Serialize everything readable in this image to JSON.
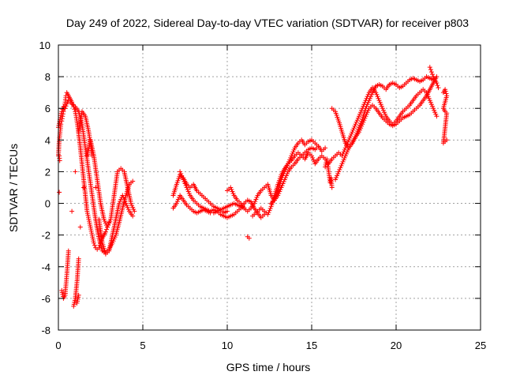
{
  "chart_data": {
    "type": "scatter",
    "title": "Day 249 of 2022, Sidereal Day-to-day VTEC variation (SDTVAR) for receiver p803",
    "xlabel": "GPS time / hours",
    "ylabel": "SDTVAR / TECUs",
    "xlim": [
      0,
      25
    ],
    "ylim": [
      -8,
      10
    ],
    "xticks": [
      0,
      5,
      10,
      15,
      20,
      25
    ],
    "yticks": [
      -8,
      -6,
      -4,
      -2,
      0,
      2,
      4,
      6,
      8,
      10
    ],
    "grid": true,
    "marker": "+",
    "colors": {
      "series": "#ff0000",
      "grid": "#a0a0a0",
      "axis": "#000000"
    },
    "series": [
      {
        "name": "arc-1",
        "x": [
          0.0,
          0.1,
          0.2,
          0.3,
          0.4,
          0.5,
          0.6,
          0.8,
          1.0,
          1.2,
          1.4,
          1.6,
          1.8,
          2.0,
          2.2,
          2.4,
          2.6,
          2.8,
          3.0,
          3.2,
          3.4,
          3.6,
          3.8,
          4.0,
          4.2,
          4.4
        ],
        "y": [
          4.8,
          5.3,
          5.8,
          6.1,
          6.0,
          6.3,
          6.5,
          6.3,
          6.1,
          5.8,
          5.0,
          3.5,
          2.0,
          0.5,
          -1.0,
          -2.2,
          -3.0,
          -3.1,
          -2.9,
          -2.5,
          -2.0,
          -1.2,
          -0.3,
          0.5,
          1.2,
          1.4
        ]
      },
      {
        "name": "arc-2",
        "x": [
          0.2,
          0.3,
          0.4,
          0.5,
          0.6,
          0.8,
          1.0,
          1.2,
          1.4,
          1.6,
          1.8,
          2.0,
          2.2,
          2.4,
          2.6,
          2.8,
          3.0,
          3.2,
          3.4,
          3.6,
          3.8,
          4.0,
          4.2,
          4.4
        ],
        "y": [
          -5.5,
          -6.0,
          -5.8,
          -4.5,
          -3.0,
          -0.5,
          2.0,
          4.5,
          5.8,
          5.5,
          4.5,
          3.0,
          1.0,
          -1.0,
          -2.5,
          -3.2,
          -3.0,
          -2.0,
          -1.0,
          0.0,
          0.5,
          0.0,
          -0.5,
          -0.8
        ]
      },
      {
        "name": "arc-3",
        "x": [
          0.9,
          1.0,
          1.1,
          1.2,
          1.3,
          1.5,
          1.7,
          1.9,
          2.1,
          2.3,
          2.5,
          2.7,
          2.9,
          3.1,
          3.3,
          3.5,
          3.7,
          3.9,
          4.1,
          4.3,
          4.5
        ],
        "y": [
          -6.5,
          -6.0,
          -5.0,
          -3.5,
          -1.5,
          1.0,
          3.0,
          4.0,
          3.0,
          1.5,
          0.0,
          -1.0,
          -1.5,
          -1.0,
          0.5,
          2.0,
          2.2,
          2.0,
          1.0,
          0.0,
          -0.5
        ]
      },
      {
        "name": "arc-4",
        "x": [
          0.0,
          0.05,
          0.1,
          0.15,
          0.2,
          0.25,
          0.3,
          0.35,
          0.4,
          0.45,
          0.5,
          0.55,
          0.6,
          0.7,
          0.8,
          0.9,
          1.0,
          1.1,
          1.2,
          1.3,
          1.4,
          1.5,
          1.6,
          1.7,
          1.8,
          1.9,
          2.0,
          2.1,
          2.2,
          2.3,
          2.4,
          2.5,
          2.6,
          2.7,
          2.8,
          2.9,
          3.0
        ],
        "y": [
          3.0,
          4.0,
          4.5,
          5.0,
          5.2,
          5.5,
          5.8,
          6.0,
          6.4,
          6.8,
          7.0,
          6.9,
          6.8,
          6.6,
          6.4,
          6.1,
          5.8,
          5.2,
          4.4,
          3.5,
          2.5,
          1.5,
          0.5,
          -0.5,
          -1.0,
          -1.5,
          -2.0,
          -2.5,
          -2.8,
          -2.9,
          -2.8,
          -2.5,
          -2.2,
          -2.0,
          -1.8,
          -1.5,
          -1.2
        ]
      },
      {
        "name": "arc-5",
        "x": [
          6.8,
          7.0,
          7.2,
          7.4,
          7.6,
          7.8,
          8.0,
          8.2,
          8.4,
          8.6,
          8.8,
          9.0,
          9.2,
          9.4,
          9.6,
          9.8,
          10.0,
          10.2,
          10.4,
          10.6,
          10.8,
          11.0
        ],
        "y": [
          0.5,
          1.2,
          1.8,
          1.6,
          1.2,
          1.0,
          1.2,
          0.8,
          0.6,
          0.4,
          0.2,
          0.0,
          -0.2,
          -0.3,
          -0.4,
          -0.3,
          -0.2,
          -0.1,
          0.0,
          -0.1,
          -0.2,
          -0.3
        ]
      },
      {
        "name": "arc-6",
        "x": [
          6.8,
          7.0,
          7.2,
          7.4,
          7.6,
          7.8,
          8.0,
          8.2,
          8.4,
          8.6,
          8.8,
          9.0,
          9.2,
          9.4,
          9.6,
          9.8,
          10.0,
          10.2,
          10.4,
          10.6,
          10.8,
          11.0,
          11.2,
          11.4,
          11.6,
          11.8,
          12.0,
          12.2
        ],
        "y": [
          -0.3,
          0.0,
          0.5,
          0.2,
          -0.1,
          -0.3,
          -0.5,
          -0.6,
          -0.5,
          -0.4,
          -0.5,
          -0.6,
          -0.6,
          -0.5,
          -0.7,
          -0.8,
          -0.9,
          -0.8,
          -0.7,
          -0.5,
          -0.3,
          0.0,
          0.2,
          0.1,
          -0.3,
          -0.6,
          -0.9,
          -0.7
        ]
      },
      {
        "name": "arc-7",
        "x": [
          7.2,
          7.4,
          7.6,
          7.8,
          8.0,
          8.2,
          8.4,
          8.6,
          8.8,
          9.0,
          9.2,
          9.4,
          9.6,
          9.8,
          10.0
        ],
        "y": [
          2.0,
          1.5,
          1.0,
          0.5,
          0.2,
          0.0,
          -0.2,
          -0.3,
          -0.4,
          -0.5,
          -0.4,
          -0.5,
          -0.4,
          -0.6,
          -0.5
        ]
      },
      {
        "name": "arc-8",
        "x": [
          10.0,
          10.2,
          10.4,
          10.6,
          10.8,
          11.0,
          11.2,
          11.4,
          11.6,
          11.8,
          12.0,
          12.2,
          12.4,
          12.6,
          12.8,
          13.0,
          13.2,
          13.4,
          13.6,
          13.8,
          14.0,
          14.2,
          14.4,
          14.6,
          14.8,
          15.0,
          15.2,
          15.4,
          15.6,
          15.8
        ],
        "y": [
          0.8,
          1.0,
          0.5,
          0.2,
          0.0,
          -0.3,
          -0.5,
          -0.3,
          0.0,
          0.5,
          0.8,
          1.0,
          1.2,
          0.5,
          0.2,
          0.5,
          1.0,
          1.5,
          2.0,
          2.3,
          2.5,
          2.8,
          3.0,
          3.2,
          3.4,
          3.5,
          3.4,
          3.6,
          3.3,
          3.5
        ]
      },
      {
        "name": "arc-9",
        "x": [
          11.5,
          11.8,
          12.0,
          12.2,
          12.4,
          12.6,
          12.8,
          13.0,
          13.2,
          13.4,
          13.6,
          13.8,
          14.0,
          14.2,
          14.4,
          14.6,
          14.8,
          15.0,
          15.2,
          15.4,
          15.6,
          15.8
        ],
        "y": [
          -0.8,
          -0.5,
          -0.3,
          -0.5,
          -0.7,
          -0.2,
          0.5,
          1.2,
          1.8,
          2.2,
          2.5,
          2.7,
          3.0,
          3.2,
          3.0,
          2.8,
          3.2,
          3.0,
          2.5,
          2.8,
          3.0,
          2.8
        ]
      },
      {
        "name": "arc-10",
        "x": [
          12.6,
          12.8,
          13.0,
          13.2,
          13.4,
          13.6,
          13.8,
          14.0,
          14.2,
          14.4,
          14.6,
          14.8,
          15.0,
          15.2,
          15.4
        ],
        "y": [
          0.0,
          0.2,
          0.8,
          1.5,
          2.0,
          2.5,
          3.0,
          3.5,
          3.8,
          4.0,
          3.7,
          3.9,
          4.0,
          3.8,
          3.6
        ]
      },
      {
        "name": "arc-11",
        "x": [
          16.2,
          16.4,
          16.6,
          16.8,
          17.0,
          17.2,
          17.4,
          17.6,
          17.8,
          18.0,
          18.2,
          18.4,
          18.6,
          18.8,
          19.0,
          19.2,
          19.4,
          19.6,
          19.8,
          20.0,
          20.2,
          20.4,
          20.6,
          20.8,
          21.0,
          21.2,
          21.4,
          21.6,
          21.8,
          22.0,
          22.2
        ],
        "y": [
          6.0,
          5.8,
          5.2,
          4.5,
          3.8,
          3.5,
          3.8,
          4.2,
          4.8,
          5.3,
          6.0,
          6.5,
          7.0,
          7.4,
          7.5,
          7.4,
          7.2,
          7.5,
          7.6,
          7.5,
          7.3,
          7.4,
          7.6,
          7.8,
          7.9,
          7.8,
          7.7,
          7.8,
          8.0,
          7.9,
          7.8
        ]
      },
      {
        "name": "arc-12",
        "x": [
          16.0,
          16.2,
          16.4,
          16.6,
          16.8,
          17.0,
          17.2,
          17.4,
          17.6,
          17.8,
          18.0,
          18.2,
          18.4,
          18.6,
          18.8,
          19.0,
          19.2,
          19.4,
          19.6,
          19.8,
          20.0,
          20.2,
          20.4,
          20.6,
          20.8,
          21.0,
          21.2,
          21.4,
          21.6,
          21.8,
          22.0,
          22.2,
          22.4
        ],
        "y": [
          2.5,
          2.8,
          3.0,
          3.2,
          3.0,
          3.5,
          4.0,
          4.5,
          5.0,
          5.5,
          6.0,
          6.5,
          7.0,
          7.3,
          7.0,
          6.5,
          6.0,
          5.5,
          5.2,
          5.0,
          5.2,
          5.5,
          5.8,
          6.0,
          6.2,
          6.5,
          6.8,
          7.0,
          7.2,
          7.0,
          6.5,
          6.0,
          5.5
        ]
      },
      {
        "name": "arc-13",
        "x": [
          16.4,
          16.6,
          16.8,
          17.0,
          17.2,
          17.4,
          17.6,
          17.8,
          18.0,
          18.2,
          18.4,
          18.6,
          18.8,
          19.0,
          19.2,
          19.4,
          19.6,
          19.8,
          20.0,
          20.2,
          20.4,
          20.6,
          20.8,
          21.0,
          21.2,
          21.4,
          21.6,
          21.8,
          22.0,
          22.2,
          22.4
        ],
        "y": [
          1.5,
          2.0,
          2.5,
          3.0,
          3.5,
          3.8,
          4.2,
          4.5,
          5.0,
          5.5,
          6.0,
          6.2,
          6.0,
          5.7,
          5.4,
          5.2,
          5.0,
          4.9,
          5.0,
          5.2,
          5.4,
          5.5,
          5.6,
          5.8,
          6.0,
          6.2,
          6.5,
          6.8,
          7.2,
          7.6,
          8.0
        ]
      },
      {
        "name": "arc-14",
        "x": [
          22.0,
          22.1,
          22.2,
          22.3,
          22.4,
          22.5
        ],
        "y": [
          8.6,
          8.3,
          8.0,
          7.8,
          7.6,
          7.3
        ]
      },
      {
        "name": "arc-15",
        "x": [
          22.8,
          22.9,
          23.0,
          22.8,
          22.9,
          23.0,
          22.8,
          22.9,
          23.0
        ],
        "y": [
          7.0,
          7.2,
          6.8,
          6.0,
          5.8,
          5.7,
          3.8,
          3.9,
          4.0
        ]
      },
      {
        "name": "arc-16",
        "x": [
          0.05,
          0.05,
          0.08,
          1.1,
          1.2,
          11.2,
          11.3,
          15.8,
          15.9,
          16.1,
          16.15,
          16.2
        ],
        "y": [
          0.7,
          3.0,
          2.7,
          -6.3,
          -5.8,
          -2.1,
          -2.2,
          2.3,
          2.8,
          1.3,
          1.6,
          1.0
        ]
      }
    ]
  }
}
